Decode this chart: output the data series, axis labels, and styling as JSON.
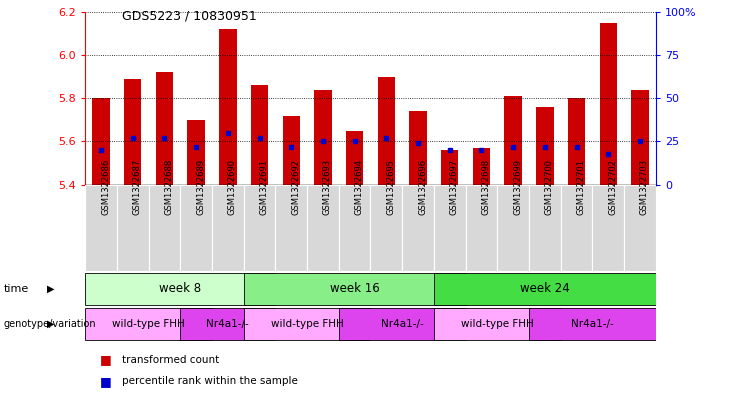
{
  "title": "GDS5223 / 10830951",
  "samples": [
    "GSM1322686",
    "GSM1322687",
    "GSM1322688",
    "GSM1322689",
    "GSM1322690",
    "GSM1322691",
    "GSM1322692",
    "GSM1322693",
    "GSM1322694",
    "GSM1322695",
    "GSM1322696",
    "GSM1322697",
    "GSM1322698",
    "GSM1322699",
    "GSM1322700",
    "GSM1322701",
    "GSM1322702",
    "GSM1322703"
  ],
  "red_values": [
    5.8,
    5.89,
    5.92,
    5.7,
    6.12,
    5.86,
    5.72,
    5.84,
    5.65,
    5.9,
    5.74,
    5.56,
    5.57,
    5.81,
    5.76,
    5.8,
    6.15,
    5.84
  ],
  "blue_percentiles": [
    20,
    27,
    27,
    22,
    30,
    27,
    22,
    25,
    25,
    27,
    24,
    20,
    20,
    22,
    22,
    22,
    18,
    25
  ],
  "ylim_left": [
    5.4,
    6.2
  ],
  "ylim_right": [
    0,
    100
  ],
  "right_ticks": [
    0,
    25,
    50,
    75,
    100
  ],
  "right_tick_labels": [
    "0",
    "25",
    "50",
    "75",
    "100%"
  ],
  "left_ticks": [
    5.4,
    5.6,
    5.8,
    6.0,
    6.2
  ],
  "bar_color": "#cc0000",
  "dot_color": "#0000cc",
  "week_colors": [
    "#ccffcc",
    "#88ee88",
    "#44dd44"
  ],
  "wt_color": "#ffaaff",
  "nr_color": "#dd44ee",
  "time_groups": [
    {
      "label": "week 8",
      "start": 0,
      "end": 5
    },
    {
      "label": "week 16",
      "start": 5,
      "end": 11
    },
    {
      "label": "week 24",
      "start": 11,
      "end": 17
    }
  ],
  "genotype_groups": [
    {
      "label": "wild-type FHH",
      "start": 0,
      "end": 3,
      "wt": true
    },
    {
      "label": "Nr4a1-/-",
      "start": 3,
      "end": 5,
      "wt": false
    },
    {
      "label": "wild-type FHH",
      "start": 5,
      "end": 8,
      "wt": true
    },
    {
      "label": "Nr4a1-/-",
      "start": 8,
      "end": 11,
      "wt": false
    },
    {
      "label": "wild-type FHH",
      "start": 11,
      "end": 14,
      "wt": true
    },
    {
      "label": "Nr4a1-/-",
      "start": 14,
      "end": 17,
      "wt": false
    }
  ]
}
